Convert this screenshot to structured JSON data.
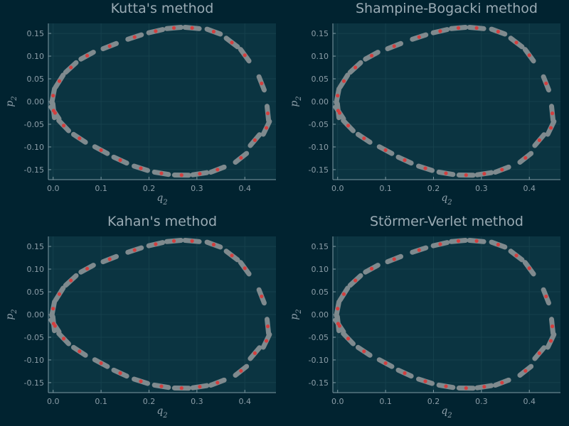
{
  "colors": {
    "background": "#012330",
    "plot_area": "#0b3441",
    "grid": "#16414d",
    "axis": "#7f9aa3",
    "text": "#9aabb4",
    "trajectory": "#7f8a8e",
    "samples": "#d23f3f"
  },
  "chart_data": [
    {
      "type": "scatter",
      "title": "Kutta's method",
      "xlabel": "q",
      "xlabel_sub": "2",
      "ylabel": "p",
      "ylabel_sub": "2",
      "xlim": [
        -0.01,
        0.465
      ],
      "ylim": [
        -0.172,
        0.172
      ],
      "xticks": [
        "0.0",
        "0.1",
        "0.2",
        "0.3",
        "0.4"
      ],
      "yticks": [
        "-0.15",
        "-0.10",
        "-0.05",
        "0.00",
        "0.05",
        "0.10",
        "0.15"
      ],
      "grid": true,
      "legend": "none",
      "series": [
        {
          "values_x": [
            0.001,
            0.0,
            0.013,
            0.037,
            0.071,
            0.118,
            0.17,
            0.214,
            0.252,
            0.29,
            0.335,
            0.373,
            0.4,
            0.435,
            0.448,
            0.445,
            0.421,
            0.392,
            0.343,
            0.306,
            0.268,
            0.226,
            0.183,
            0.14,
            0.1,
            0.055,
            0.022,
            0.004
          ],
          "values_y": [
            -0.02,
            0.013,
            0.045,
            0.075,
            0.101,
            0.122,
            0.142,
            0.155,
            0.162,
            0.162,
            0.154,
            0.13,
            0.102,
            0.04,
            -0.026,
            -0.058,
            -0.085,
            -0.124,
            -0.15,
            -0.159,
            -0.162,
            -0.158,
            -0.147,
            -0.129,
            -0.107,
            -0.081,
            -0.053,
            -0.025
          ]
        }
      ]
    },
    {
      "type": "scatter",
      "title": "Shampine-Bogacki method",
      "xlabel": "q",
      "xlabel_sub": "2",
      "ylabel": "p",
      "ylabel_sub": "2",
      "xlim": [
        -0.01,
        0.465
      ],
      "ylim": [
        -0.172,
        0.172
      ],
      "xticks": [
        "0.0",
        "0.1",
        "0.2",
        "0.3",
        "0.4"
      ],
      "yticks": [
        "-0.15",
        "-0.10",
        "-0.05",
        "0.00",
        "0.05",
        "0.10",
        "0.15"
      ],
      "grid": true,
      "legend": "none",
      "series": [
        {
          "values_x": [
            0.001,
            0.0,
            0.013,
            0.037,
            0.071,
            0.118,
            0.17,
            0.214,
            0.252,
            0.29,
            0.335,
            0.373,
            0.4,
            0.435,
            0.448,
            0.445,
            0.421,
            0.392,
            0.343,
            0.306,
            0.268,
            0.226,
            0.183,
            0.14,
            0.1,
            0.055,
            0.022,
            0.004
          ],
          "values_y": [
            -0.02,
            0.013,
            0.045,
            0.075,
            0.101,
            0.122,
            0.142,
            0.155,
            0.162,
            0.162,
            0.154,
            0.13,
            0.102,
            0.04,
            -0.026,
            -0.058,
            -0.085,
            -0.124,
            -0.15,
            -0.159,
            -0.162,
            -0.158,
            -0.147,
            -0.129,
            -0.107,
            -0.081,
            -0.053,
            -0.025
          ]
        }
      ]
    },
    {
      "type": "scatter",
      "title": "Kahan's method",
      "xlabel": "q",
      "xlabel_sub": "2",
      "ylabel": "p",
      "ylabel_sub": "2",
      "xlim": [
        -0.01,
        0.465
      ],
      "ylim": [
        -0.172,
        0.172
      ],
      "xticks": [
        "0.0",
        "0.1",
        "0.2",
        "0.3",
        "0.4"
      ],
      "yticks": [
        "-0.15",
        "-0.10",
        "-0.05",
        "0.00",
        "0.05",
        "0.10",
        "0.15"
      ],
      "grid": true,
      "legend": "none",
      "series": [
        {
          "values_x": [
            0.001,
            0.0,
            0.013,
            0.037,
            0.071,
            0.118,
            0.17,
            0.214,
            0.252,
            0.29,
            0.335,
            0.373,
            0.4,
            0.435,
            0.448,
            0.445,
            0.421,
            0.392,
            0.343,
            0.306,
            0.268,
            0.226,
            0.183,
            0.14,
            0.1,
            0.055,
            0.022,
            0.004
          ],
          "values_y": [
            -0.02,
            0.013,
            0.045,
            0.075,
            0.101,
            0.122,
            0.142,
            0.155,
            0.162,
            0.162,
            0.154,
            0.13,
            0.102,
            0.04,
            -0.026,
            -0.058,
            -0.085,
            -0.124,
            -0.15,
            -0.159,
            -0.162,
            -0.158,
            -0.147,
            -0.129,
            -0.107,
            -0.081,
            -0.053,
            -0.025
          ]
        }
      ]
    },
    {
      "type": "scatter",
      "title": "Störmer-Verlet method",
      "xlabel": "q",
      "xlabel_sub": "2",
      "ylabel": "p",
      "ylabel_sub": "2",
      "xlim": [
        -0.01,
        0.465
      ],
      "ylim": [
        -0.172,
        0.172
      ],
      "xticks": [
        "0.0",
        "0.1",
        "0.2",
        "0.3",
        "0.4"
      ],
      "yticks": [
        "-0.15",
        "-0.10",
        "-0.05",
        "0.00",
        "0.05",
        "0.10",
        "0.15"
      ],
      "grid": true,
      "legend": "none",
      "series": [
        {
          "values_x": [
            0.001,
            0.0,
            0.013,
            0.037,
            0.071,
            0.118,
            0.17,
            0.214,
            0.252,
            0.29,
            0.335,
            0.373,
            0.4,
            0.435,
            0.448,
            0.445,
            0.421,
            0.392,
            0.343,
            0.306,
            0.268,
            0.226,
            0.183,
            0.14,
            0.1,
            0.055,
            0.022,
            0.004
          ],
          "values_y": [
            -0.02,
            0.013,
            0.045,
            0.075,
            0.101,
            0.122,
            0.142,
            0.155,
            0.162,
            0.162,
            0.154,
            0.13,
            0.102,
            0.04,
            -0.026,
            -0.058,
            -0.085,
            -0.124,
            -0.15,
            -0.159,
            -0.162,
            -0.158,
            -0.147,
            -0.129,
            -0.107,
            -0.081,
            -0.053,
            -0.025
          ]
        }
      ]
    }
  ]
}
